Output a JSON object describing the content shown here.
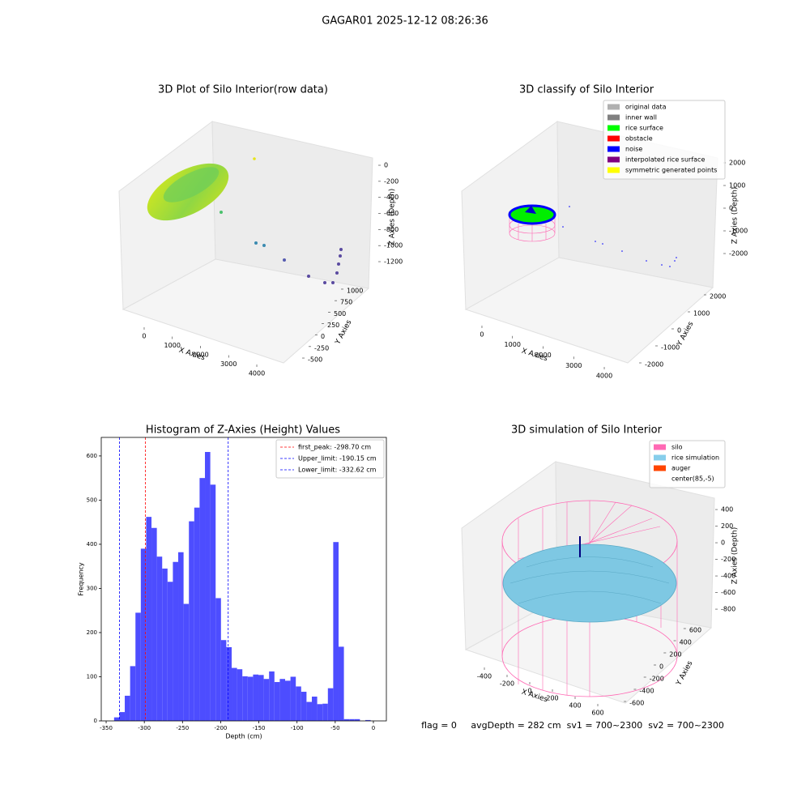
{
  "title": "GAGAR01 2025-12-12 08:26:36",
  "status": "flag = 0     avgDepth = 282 cm  sv1 = 700~2300  sv2 = 700~2300",
  "chart_data": [
    {
      "type": "scatter3d",
      "title": "3D Plot of Silo Interior(row data)",
      "x_label": "X Axies",
      "y_label": "Y Axies",
      "z_label": "Z Axies (Depth)",
      "xlim": [
        -500,
        4500
      ],
      "xticks": [
        0,
        1000,
        2000,
        3000,
        4000
      ],
      "ylim": [
        -600,
        1100
      ],
      "yticks": [
        -500,
        -250,
        0,
        250,
        500,
        750,
        1000
      ],
      "zlim": [
        -1350,
        100
      ],
      "zticks": [
        0,
        -200,
        -400,
        -600,
        -800,
        -1000,
        -1200
      ]
    },
    {
      "type": "scatter3d",
      "title": "3D classify of Silo Interior",
      "x_label": "X Axies",
      "y_label": "Y Axies",
      "z_label": "Z Axies (Depth)",
      "xlim": [
        -500,
        4500
      ],
      "xticks": [
        0,
        1000,
        2000,
        3000,
        4000
      ],
      "ylim": [
        -2500,
        2500
      ],
      "yticks": [
        -2000,
        -1000,
        0,
        1000,
        2000
      ],
      "zlim": [
        -2500,
        2500
      ],
      "zticks": [
        2000,
        1000,
        0,
        -1000,
        -2000
      ],
      "legend": [
        {
          "name": "original data",
          "color": "#b0b0b0"
        },
        {
          "name": "inner wall",
          "color": "#808080"
        },
        {
          "name": "rice surface",
          "color": "#00ff00"
        },
        {
          "name": "obstacle",
          "color": "#ff0000"
        },
        {
          "name": "noise",
          "color": "#0000ff"
        },
        {
          "name": "interpolated rice surface",
          "color": "#800080"
        },
        {
          "name": "symmetric generated points",
          "color": "#ffff00"
        }
      ]
    },
    {
      "type": "histogram",
      "title": "Histogram of Z-Axies (Height) Values",
      "x_label": "Depth (cm)",
      "y_label": "Frequency",
      "color": "#4d4dff",
      "bins": [
        -339.6,
        -332.6,
        -325.6,
        -318.6,
        -311.6,
        -304.6,
        -297.6,
        -290.6,
        -283.6,
        -276.6,
        -269.6,
        -262.6,
        -255.6,
        -248.6,
        -241.6,
        -234.6,
        -227.6,
        -220.6,
        -213.6,
        -206.6,
        -199.6,
        -192.6,
        -185.6,
        -178.6,
        -171.6,
        -164.6,
        -157.6,
        -150.6,
        -143.6,
        -136.6,
        -129.6,
        -122.6,
        -115.6,
        -108.6,
        -101.6,
        -94.6,
        -87.6,
        -80.6,
        -73.6,
        -66.6,
        -59.6,
        -52.6,
        -45.6,
        -38.6,
        -31.6,
        -24.6,
        -17.6,
        -10.6,
        -3.6
      ],
      "values": [
        8,
        20,
        57,
        124,
        245,
        390,
        462,
        437,
        372,
        345,
        315,
        360,
        382,
        265,
        452,
        483,
        550,
        609,
        535,
        278,
        183,
        167,
        120,
        117,
        101,
        100,
        105,
        104,
        95,
        112,
        88,
        95,
        91,
        100,
        78,
        66,
        43,
        55,
        38,
        39,
        74,
        405,
        168,
        4,
        4,
        4,
        0,
        2
      ],
      "xlim": [
        -356.4,
        17
      ],
      "xticks": [
        -350,
        -300,
        -250,
        -200,
        -150,
        -100,
        -50,
        0
      ],
      "ylim": [
        0,
        642
      ],
      "yticks": [
        0,
        100,
        200,
        300,
        400,
        500,
        600
      ],
      "lines": [
        {
          "name": "first_peak",
          "value": -298.7,
          "label": "first_peak: -298.70 cm",
          "color": "#ff0000"
        },
        {
          "name": "Upper_limit",
          "value": -190.15,
          "label": "Upper_limit: -190.15 cm",
          "color": "#0000ff"
        },
        {
          "name": "Lower_limit",
          "value": -332.62,
          "label": "Lower_limit: -332.62 cm",
          "color": "#0000ff"
        }
      ]
    },
    {
      "type": "surface3d",
      "title": "3D simulation of Silo Interior",
      "x_label": "X Axies",
      "y_label": "Y Axies",
      "z_label": "Z Axies (Depth)",
      "xlim": [
        -550,
        750
      ],
      "xticks": [
        -400,
        -200,
        0,
        200,
        400,
        600
      ],
      "ylim": [
        -700,
        700
      ],
      "yticks": [
        -600,
        -400,
        -200,
        0,
        200,
        400,
        600
      ],
      "zlim": [
        -900,
        500
      ],
      "zticks": [
        400,
        200,
        0,
        -200,
        -400,
        -600,
        -800
      ],
      "legend": [
        {
          "name": "silo",
          "color": "#ff69b4"
        },
        {
          "name": "rice simulation",
          "color": "#87ceeb"
        },
        {
          "name": "auger",
          "color": "#ff4500"
        },
        {
          "name": "center(85,-5)",
          "color": "#ffffff"
        }
      ]
    }
  ]
}
